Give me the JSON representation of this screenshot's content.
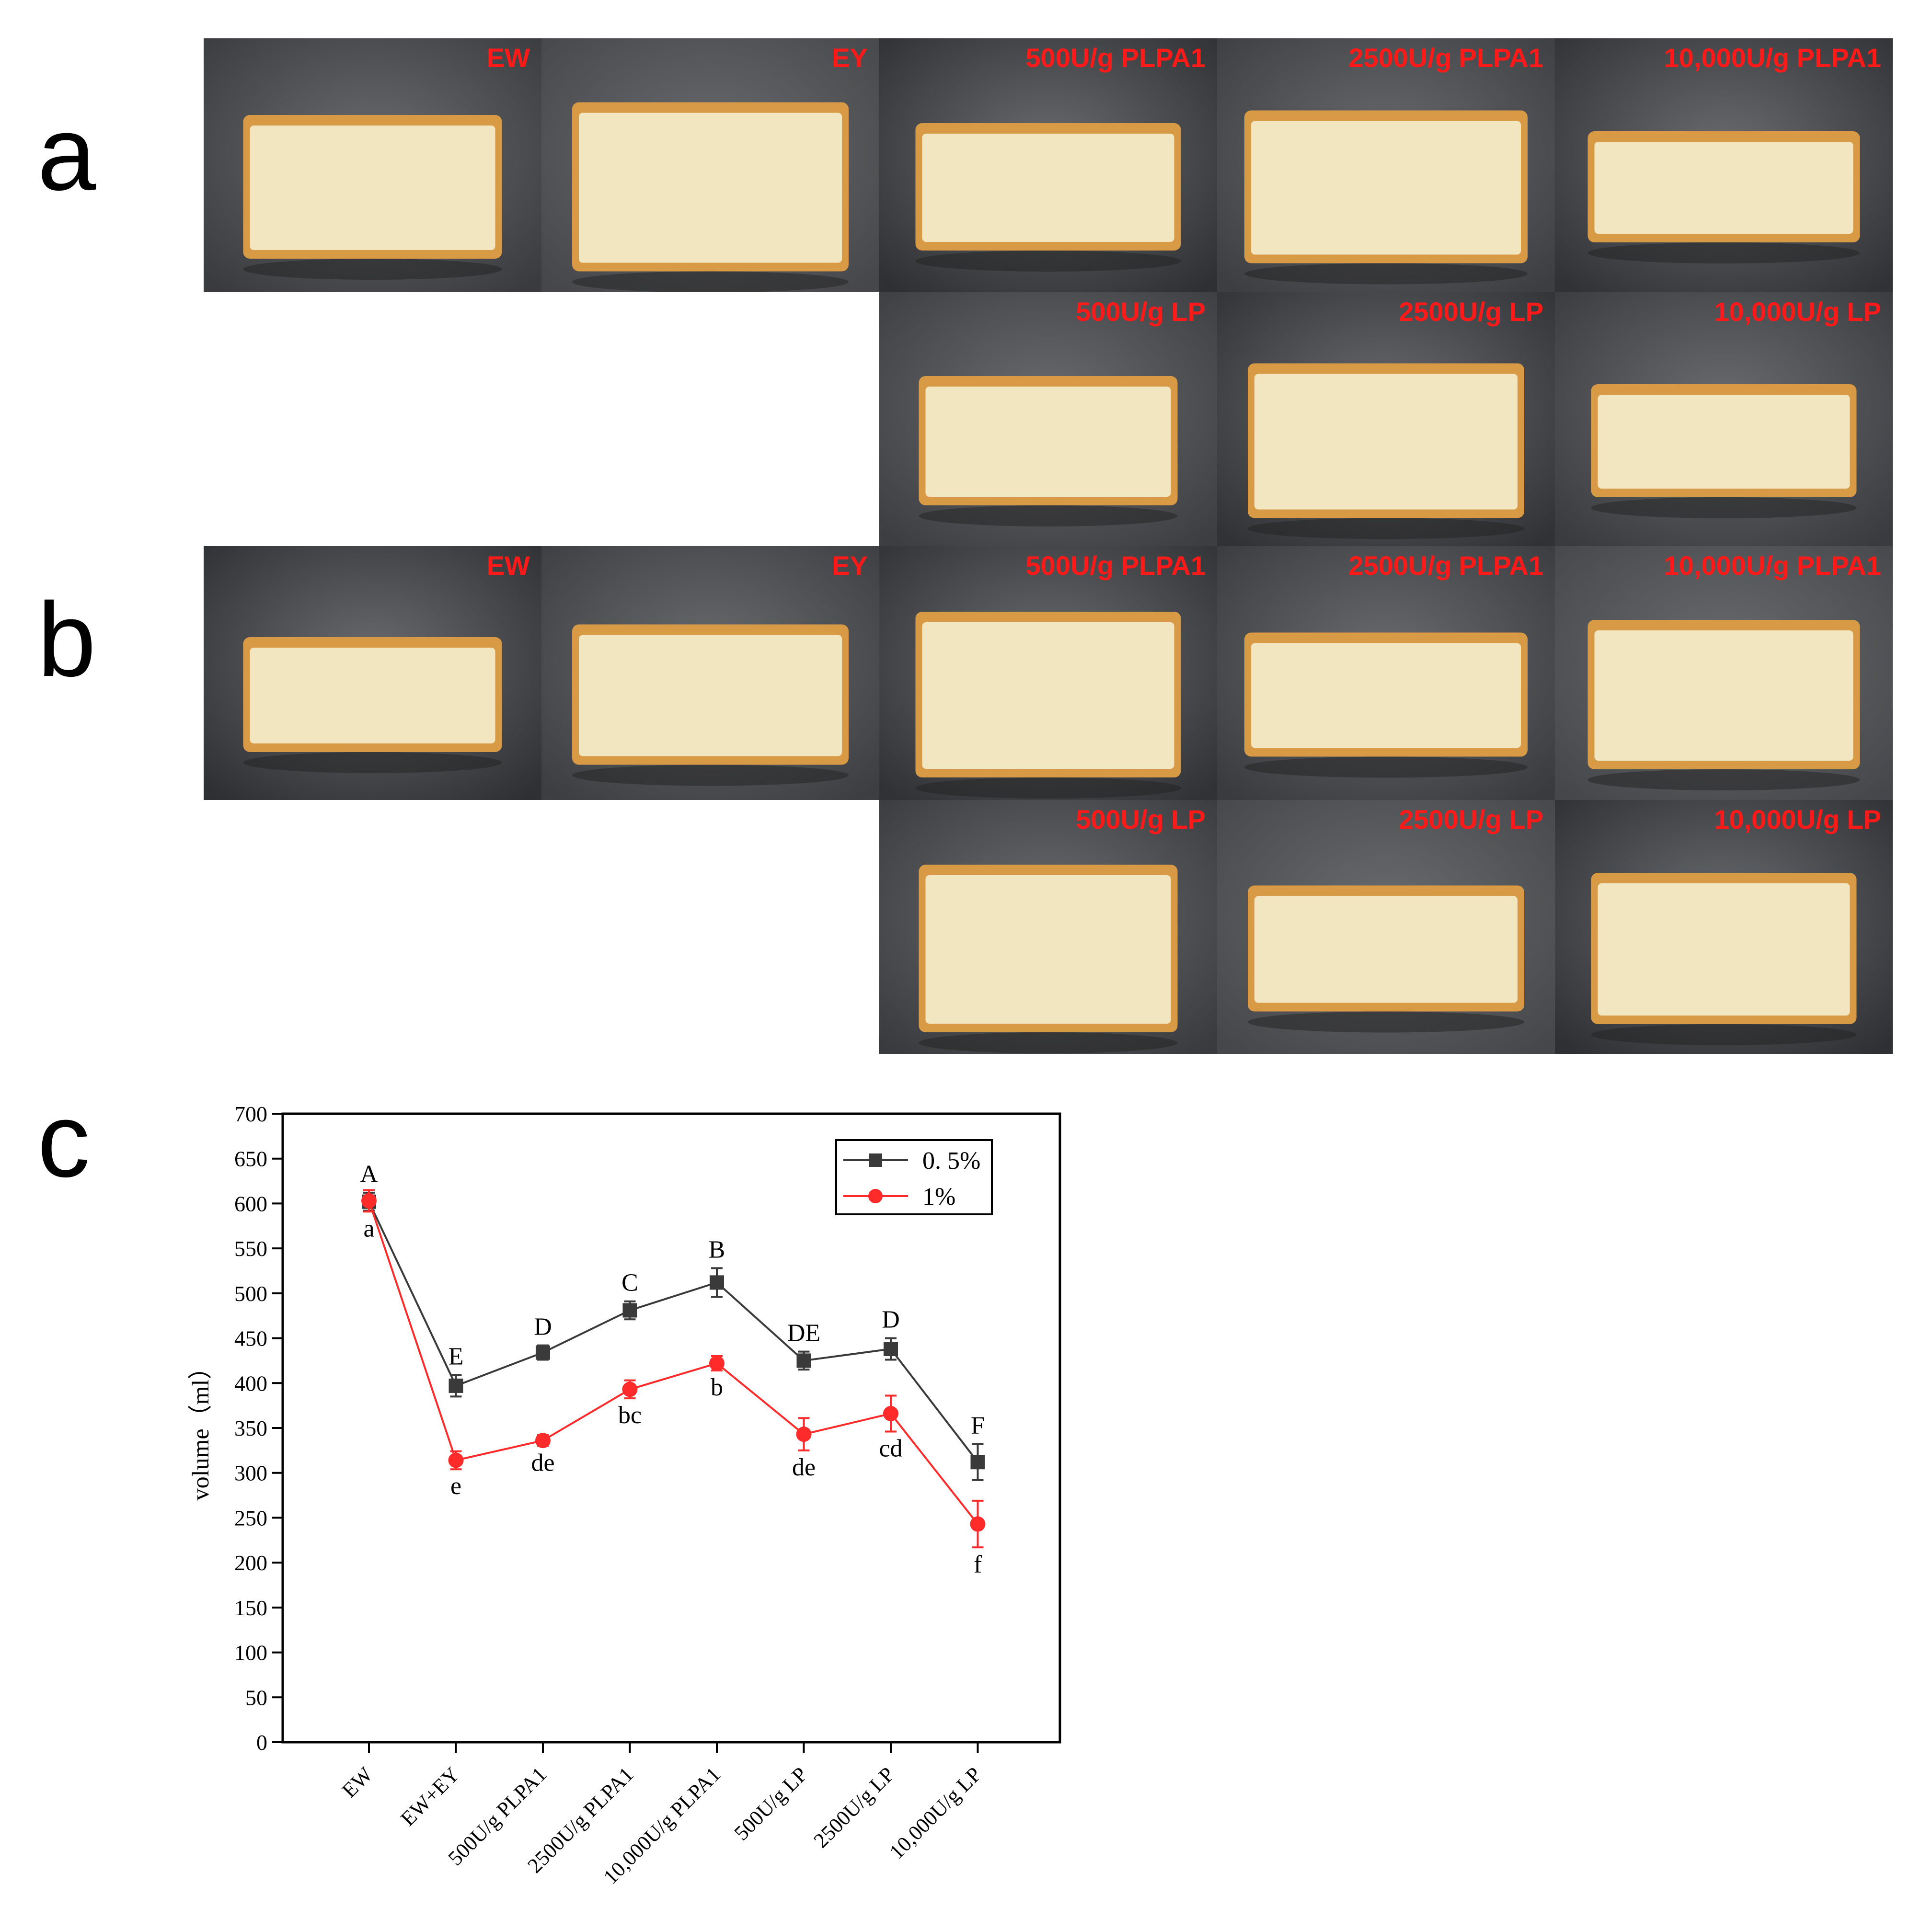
{
  "panels": {
    "a": "a",
    "b": "b",
    "c": "c"
  },
  "photos": {
    "a_top": [
      "EW",
      "EY",
      "500U/g PLPA1",
      "2500U/g PLPA1",
      "10,000U/g PLPA1"
    ],
    "a_bottom": [
      "500U/g LP",
      "2500U/g LP",
      "10,000U/g LP"
    ],
    "b_top": [
      "EW",
      "EY",
      "500U/g PLPA1",
      "2500U/g PLPA1",
      "10,000U/g PLPA1"
    ],
    "b_bottom": [
      "500U/g LP",
      "2500U/g LP",
      "10,000U/g LP"
    ]
  },
  "colors": {
    "label_red": "#ff1a1a",
    "series_black": "#3a3a3a",
    "series_red": "#ff2a2a",
    "photo_bg": "#3c3d40",
    "cake_crumb": "#f2e6c0",
    "cake_crust": "#d99a45"
  },
  "chart_data": {
    "type": "line",
    "categories": [
      "EW",
      "EW+EY",
      "500U/g PLPA1",
      "2500U/g PLPA1",
      "10,000U/g PLPA1",
      "500U/g LP",
      "2500U/g LP",
      "10,000U/g LP"
    ],
    "ylabel": "volume（ml）",
    "xlabel": "",
    "ylim": [
      0,
      700
    ],
    "yticks": [
      0,
      50,
      100,
      150,
      200,
      250,
      300,
      350,
      400,
      450,
      500,
      550,
      600,
      650,
      700
    ],
    "legend_position": "top-right",
    "series": [
      {
        "name": "0.5%",
        "legend_label": "0. 5%",
        "color": "#3a3a3a",
        "marker": "square",
        "values": [
          602,
          397,
          434,
          481,
          512,
          425,
          438,
          312
        ],
        "errors": [
          10,
          12,
          8,
          10,
          16,
          10,
          12,
          20
        ],
        "letters": [
          "A",
          "E",
          "D",
          "C",
          "B",
          "DE",
          "D",
          "F"
        ]
      },
      {
        "name": "1%",
        "legend_label": "1%",
        "color": "#ff2a2a",
        "marker": "circle",
        "values": [
          603,
          314,
          336,
          393,
          422,
          343,
          366,
          243
        ],
        "errors": [
          12,
          10,
          6,
          10,
          8,
          18,
          20,
          26
        ],
        "letters": [
          "a",
          "e",
          "de",
          "bc",
          "b",
          "de",
          "cd",
          "f"
        ]
      }
    ]
  }
}
